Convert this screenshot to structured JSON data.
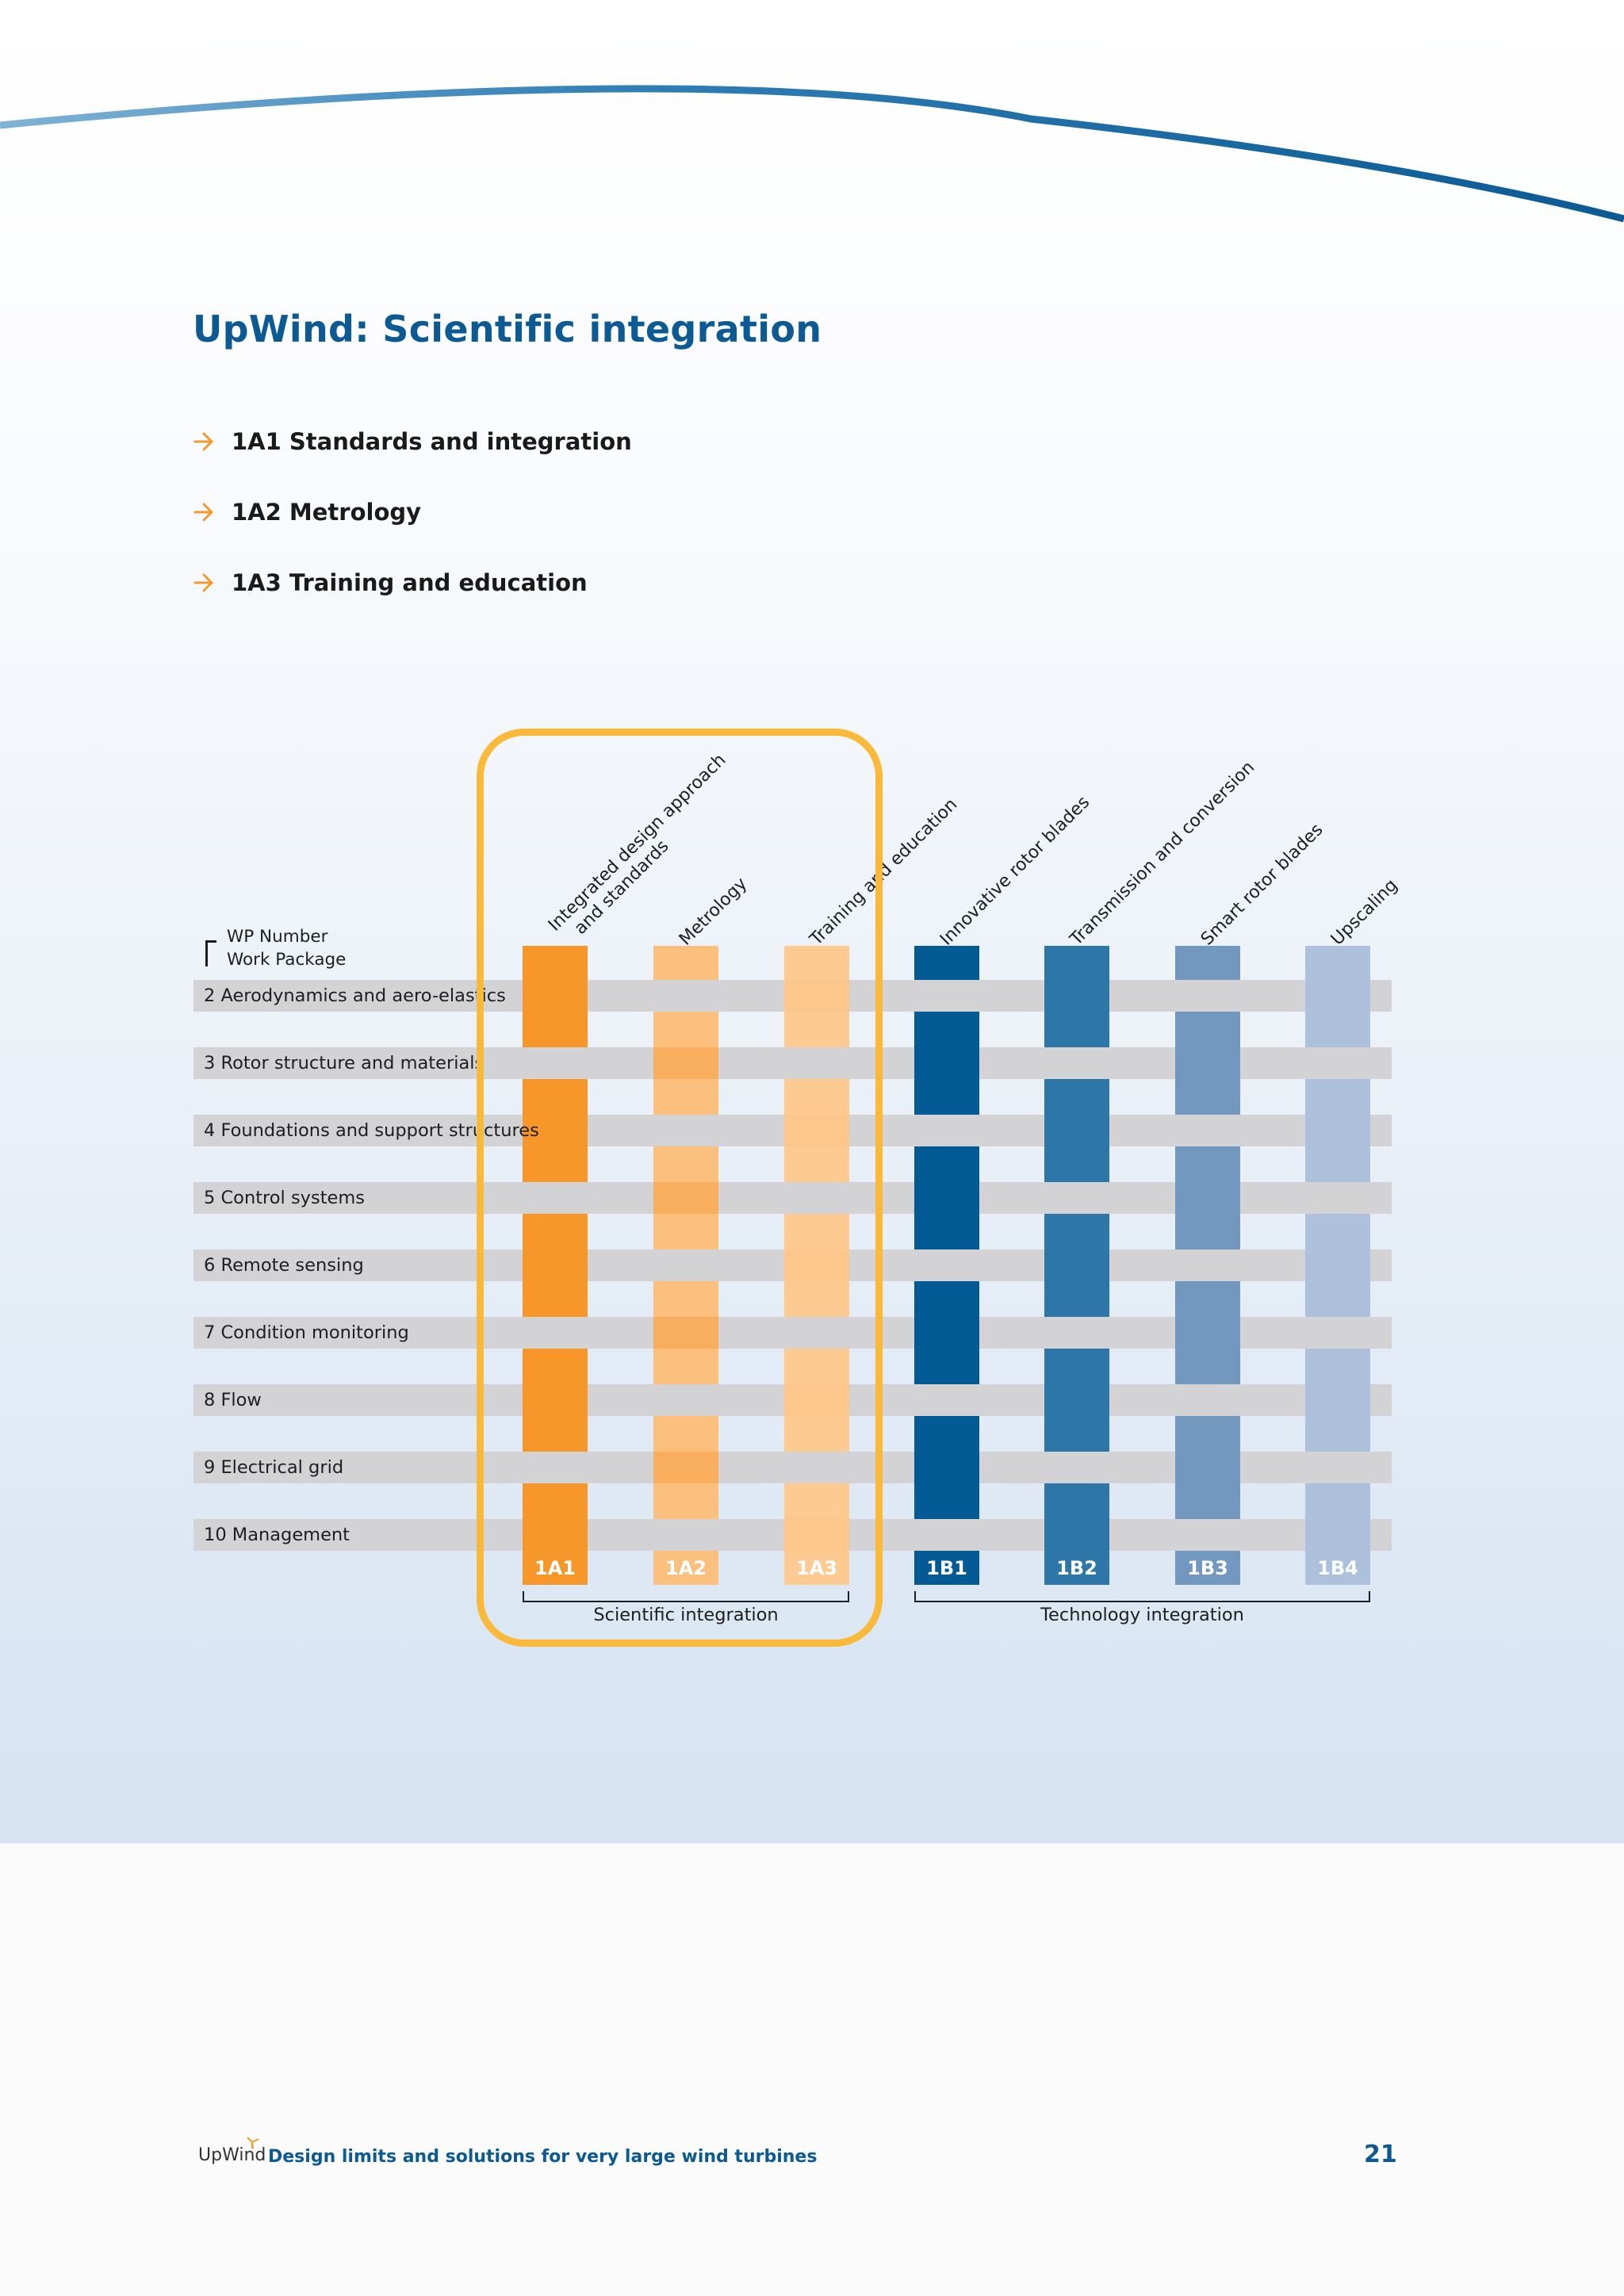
{
  "page": {
    "title": "UpWind: Scientific integration",
    "bullets": [
      "1A1 Standards and integration",
      "1A2 Metrology",
      "1A3 Training and education"
    ],
    "footer_logo": "UpWind",
    "footer_text": "Design limits and solutions for very large wind turbines",
    "page_number": "21"
  },
  "matrix": {
    "legend_line1": "WP Number",
    "legend_line2": "Work Package",
    "rows": [
      "2 Aerodynamics and aero-elastics",
      "3 Rotor structure and materials",
      "4 Foundations and support structures",
      "5 Control systems",
      "6 Remote sensing",
      "7 Condition monitoring",
      "8 Flow",
      "9 Electrical grid",
      "10 Management"
    ],
    "columns": [
      {
        "code": "1A1",
        "head1": "Integrated design approach",
        "head2": "and standards",
        "color": "#f7972a",
        "color_dark": "#f7972a"
      },
      {
        "code": "1A2",
        "head1": "Metrology",
        "head2": "",
        "color": "#fbbf7e",
        "color_dark": "#f9ae5e"
      },
      {
        "code": "1A3",
        "head1": "Training and education",
        "head2": "",
        "color": "#fdcb92",
        "color_dark": "#fdc68b"
      },
      {
        "code": "1B1",
        "head1": "Innovative rotor blades",
        "head2": "",
        "color": "#045a94",
        "color_dark": "#045a94"
      },
      {
        "code": "1B2",
        "head1": "Transmission and conversion",
        "head2": "",
        "color": "#2d76a8",
        "color_dark": "#2d76a8"
      },
      {
        "code": "1B3",
        "head1": "Smart rotor blades",
        "head2": "",
        "color": "#7298c0",
        "color_dark": "#7298c0"
      },
      {
        "code": "1B4",
        "head1": "Upscaling",
        "head2": "",
        "color": "#adc1dc",
        "color_dark": "#adc1dc"
      }
    ],
    "groups": [
      "Scientific integration",
      "Technology integration"
    ]
  },
  "colors": {
    "title": "#0b5a93",
    "highlight_border": "#fbb93a",
    "row_bar": "#d3d3d6",
    "bullet_mark": "#f29a2e"
  }
}
